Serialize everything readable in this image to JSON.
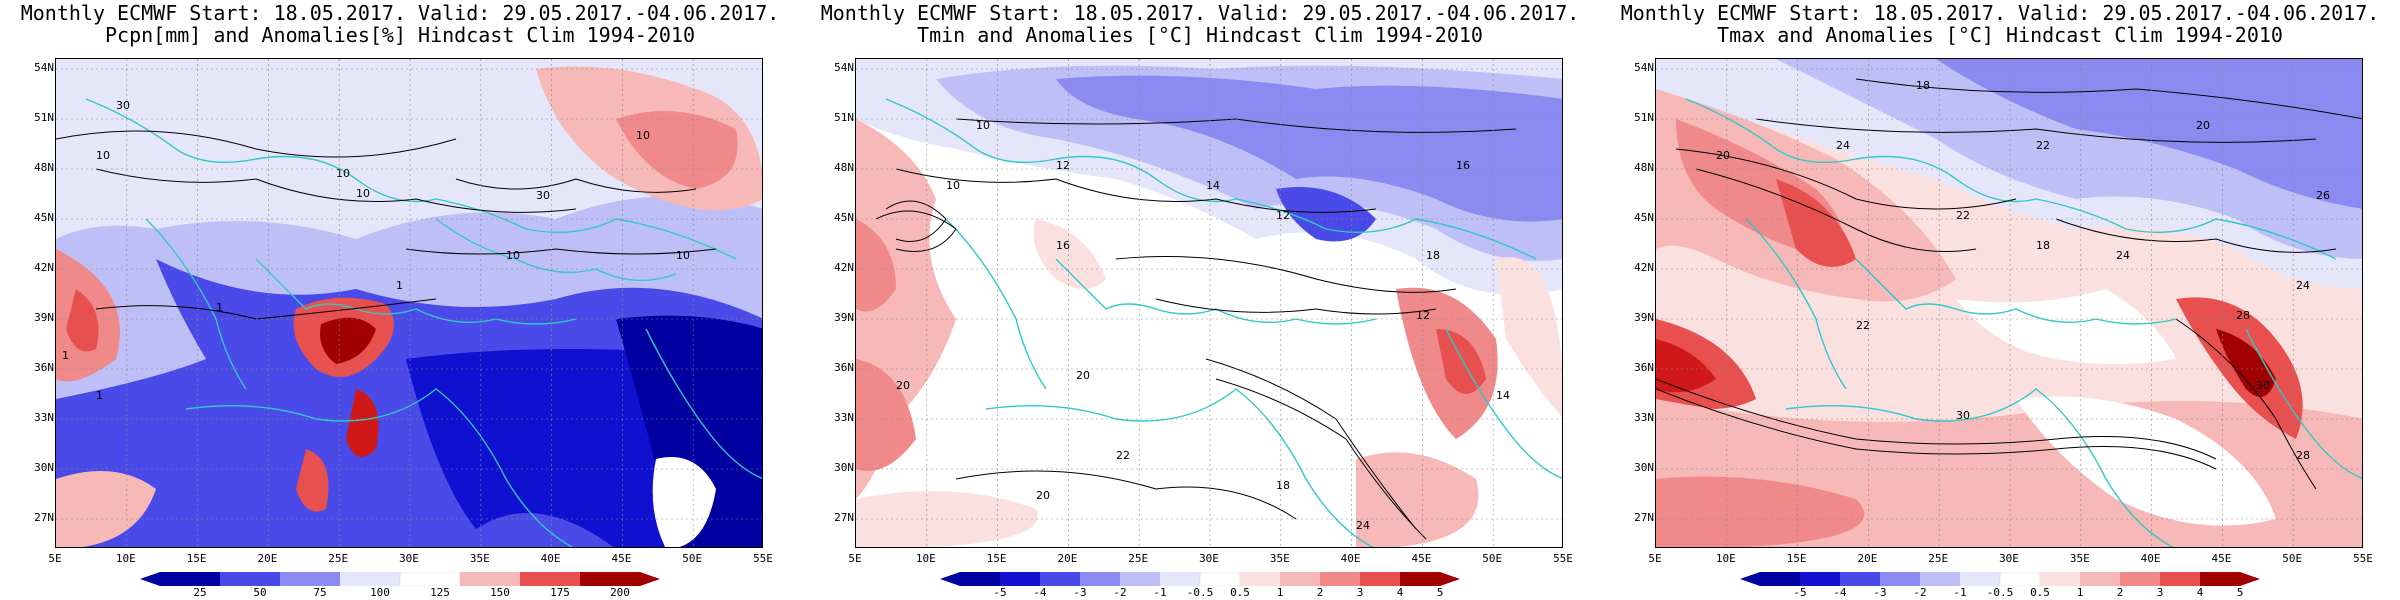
{
  "panels": [
    {
      "title1": "Monthly ECMWF Start: 18.05.2017. Valid: 29.05.2017.-04.06.2017.",
      "title2": "Pcpn[mm] and Anomalies[%] Hindcast Clim 1994-2010",
      "colorbar": [
        "25",
        "50",
        "75",
        "100",
        "125",
        "150",
        "175",
        "200"
      ],
      "contours": [
        "30",
        "10",
        "10",
        "10",
        "30",
        "10",
        "10",
        "1",
        "1",
        "1",
        "1",
        "10"
      ]
    },
    {
      "title1": "Monthly ECMWF Start: 18.05.2017. Valid: 29.05.2017.-04.06.2017.",
      "title2": "Tmin and Anomalies [°C] Hindcast Clim 1994-2010",
      "colorbar": [
        "-5",
        "-4",
        "-3",
        "-2",
        "-1",
        "-0.5",
        "0.5",
        "1",
        "2",
        "3",
        "4",
        "5"
      ],
      "contours": [
        "10",
        "10",
        "12",
        "16",
        "14",
        "12",
        "16",
        "18",
        "20",
        "20",
        "22",
        "24",
        "20",
        "18",
        "14",
        "12"
      ]
    },
    {
      "title1": "Monthly ECMWF Start: 18.05.2017. Valid: 29.05.2017.-04.06.2017.",
      "title2": "Tmax and Anomalies [°C] Hindcast Clim 1994-2010",
      "colorbar": [
        "-5",
        "-4",
        "-3",
        "-2",
        "-1",
        "-0.5",
        "0.5",
        "1",
        "2",
        "3",
        "4",
        "5"
      ],
      "contours": [
        "18",
        "20",
        "22",
        "26",
        "24",
        "22",
        "24",
        "20",
        "18",
        "30",
        "22",
        "28",
        "30",
        "28",
        "24"
      ]
    }
  ],
  "lat_labels": [
    "54N",
    "51N",
    "48N",
    "45N",
    "42N",
    "39N",
    "36N",
    "33N",
    "30N",
    "27N"
  ],
  "lon_labels": [
    "5E",
    "10E",
    "15E",
    "20E",
    "25E",
    "30E",
    "35E",
    "40E",
    "45E",
    "50E",
    "55E"
  ],
  "colors": {
    "ramp_blue": [
      "#0000a0",
      "#1010d0",
      "#4a4ae8",
      "#8a8af0",
      "#bfbff7",
      "#e6e6fb"
    ],
    "neutral": "#ffffff",
    "ramp_red": [
      "#fbe0e0",
      "#f7b8b8",
      "#f08a8a",
      "#e85050",
      "#d01818",
      "#a00000"
    ],
    "coast": "#30c8c8",
    "contour": "#000000"
  }
}
